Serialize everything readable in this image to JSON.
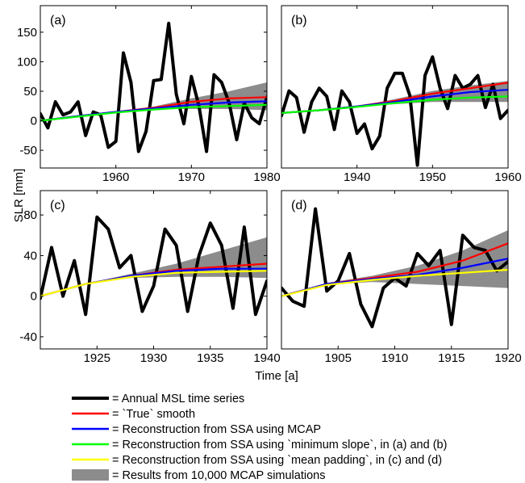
{
  "figure": {
    "xlabel": "Time [a]",
    "ylabel": "SLR [mm]"
  },
  "colors": {
    "msl": "#000000",
    "true_smooth": "#ff0000",
    "mcap": "#0000ff",
    "min_slope": "#00ff00",
    "mean_padding": "#ffff00",
    "band": "#8c8c8c"
  },
  "legend": [
    {
      "key": "msl",
      "label": "= Annual MSL time series",
      "kind": "line"
    },
    {
      "key": "true_smooth",
      "label": "= `True` smooth",
      "kind": "line"
    },
    {
      "key": "mcap",
      "label": "= Reconstruction from SSA using MCAP",
      "kind": "line"
    },
    {
      "key": "min_slope",
      "label": "= Reconstruction from SSA using `minimum slope`, in (a) and (b)",
      "kind": "line"
    },
    {
      "key": "mean_padding",
      "label": "= Reconstruction from SSA using `mean padding`, in (c) and (d)",
      "kind": "line"
    },
    {
      "key": "band",
      "label": "= Results from 10,000 MCAP simulations",
      "kind": "band"
    }
  ],
  "chart_data": [
    {
      "type": "line",
      "panel": "(a)",
      "xlim": [
        1950,
        1980
      ],
      "ylim": [
        -80,
        195
      ],
      "xticks": [
        1960,
        1970,
        1980
      ],
      "yticks": [
        -50,
        0,
        50,
        100,
        150
      ],
      "msl": {
        "x": [
          1950,
          1951,
          1952,
          1953,
          1954,
          1955,
          1956,
          1957,
          1958,
          1959,
          1960,
          1961,
          1962,
          1963,
          1964,
          1965,
          1966,
          1967,
          1968,
          1969,
          1970,
          1971,
          1972,
          1973,
          1974,
          1975,
          1976,
          1977,
          1978,
          1979,
          1980
        ],
        "y": [
          12,
          -12,
          32,
          10,
          15,
          32,
          -25,
          15,
          10,
          -45,
          -35,
          115,
          65,
          -52,
          -18,
          68,
          70,
          165,
          45,
          -5,
          75,
          25,
          -52,
          78,
          65,
          30,
          -32,
          30,
          5,
          -5,
          40
        ]
      },
      "smooth_x": [
        1950,
        1955,
        1960,
        1965,
        1970,
        1975,
        1980
      ],
      "true_smooth": [
        0,
        8,
        15,
        22,
        32,
        38,
        40
      ],
      "mcap": [
        0,
        8,
        15,
        21,
        27,
        31,
        33
      ],
      "alt": [
        0,
        7,
        14,
        19,
        23,
        25,
        27
      ],
      "band_lower": [
        0,
        8,
        15,
        20,
        20,
        20,
        18
      ],
      "band_upper": [
        0,
        8,
        15,
        24,
        38,
        50,
        65
      ]
    },
    {
      "type": "line",
      "panel": "(b)",
      "xlim": [
        1930,
        1960
      ],
      "ylim": [
        -100,
        195
      ],
      "xticks": [
        1940,
        1950,
        1960
      ],
      "yticks": [],
      "msl": {
        "x": [
          1930,
          1931,
          1932,
          1933,
          1934,
          1935,
          1936,
          1937,
          1938,
          1939,
          1940,
          1941,
          1942,
          1943,
          1944,
          1945,
          1946,
          1947,
          1948,
          1949,
          1950,
          1951,
          1952,
          1953,
          1954,
          1955,
          1956,
          1957,
          1958,
          1959,
          1960
        ],
        "y": [
          -5,
          40,
          28,
          -35,
          20,
          45,
          30,
          -30,
          40,
          20,
          -37,
          -20,
          -65,
          -42,
          45,
          72,
          72,
          32,
          -95,
          68,
          102,
          45,
          8,
          68,
          45,
          52,
          68,
          10,
          52,
          -10,
          5
        ]
      },
      "smooth_x": [
        1930,
        1935,
        1940,
        1945,
        1950,
        1955,
        1960
      ],
      "true_smooth": [
        0,
        5,
        12,
        22,
        35,
        45,
        55
      ],
      "mcap": [
        0,
        5,
        12,
        20,
        30,
        38,
        42
      ],
      "alt": [
        0,
        5,
        11,
        18,
        24,
        28,
        30
      ],
      "band_lower": [
        0,
        5,
        11,
        16,
        20,
        20,
        20
      ],
      "band_upper": [
        0,
        5,
        12,
        25,
        40,
        50,
        58
      ]
    },
    {
      "type": "line",
      "panel": "(c)",
      "xlim": [
        1920,
        1940
      ],
      "ylim": [
        -52,
        104
      ],
      "xticks": [
        1925,
        1930,
        1935,
        1940
      ],
      "yticks": [
        -40,
        0,
        40,
        80
      ],
      "msl": {
        "x": [
          1920,
          1921,
          1922,
          1923,
          1924,
          1925,
          1926,
          1927,
          1928,
          1929,
          1930,
          1931,
          1932,
          1933,
          1934,
          1935,
          1936,
          1937,
          1938,
          1939,
          1940
        ],
        "y": [
          -2,
          48,
          0,
          35,
          -18,
          78,
          66,
          28,
          40,
          -15,
          10,
          66,
          50,
          -15,
          40,
          72,
          50,
          -12,
          68,
          -18,
          15
        ]
      },
      "smooth_x": [
        1920,
        1924,
        1928,
        1932,
        1936,
        1940
      ],
      "true_smooth": [
        0,
        12,
        20,
        26,
        29,
        32
      ],
      "mcap": [
        0,
        12,
        20,
        25,
        27,
        27
      ],
      "alt": [
        0,
        12,
        19,
        23,
        24,
        25
      ],
      "band_lower": [
        0,
        12,
        18,
        19,
        19,
        18
      ],
      "band_upper": [
        0,
        12,
        22,
        32,
        45,
        58
      ]
    },
    {
      "type": "line",
      "panel": "(d)",
      "xlim": [
        1900,
        1920
      ],
      "ylim": [
        -52,
        104
      ],
      "xticks": [
        1905,
        1910,
        1915,
        1920
      ],
      "yticks": [],
      "msl": {
        "x": [
          1900,
          1901,
          1902,
          1903,
          1904,
          1905,
          1906,
          1907,
          1908,
          1909,
          1910,
          1911,
          1912,
          1913,
          1914,
          1915,
          1916,
          1917,
          1918,
          1919,
          1920
        ],
        "y": [
          8,
          -5,
          -10,
          86,
          5,
          15,
          42,
          -8,
          -30,
          8,
          18,
          10,
          42,
          30,
          45,
          -28,
          60,
          48,
          45,
          25,
          34
        ]
      },
      "smooth_x": [
        1900,
        1904,
        1908,
        1912,
        1916,
        1920
      ],
      "true_smooth": [
        0,
        12,
        18,
        24,
        35,
        52
      ],
      "mcap": [
        0,
        12,
        17,
        21,
        28,
        37
      ],
      "alt": [
        0,
        11,
        16,
        20,
        23,
        26
      ],
      "band_lower": [
        0,
        11,
        14,
        12,
        10,
        8
      ],
      "band_upper": [
        0,
        13,
        20,
        30,
        45,
        65
      ]
    }
  ]
}
